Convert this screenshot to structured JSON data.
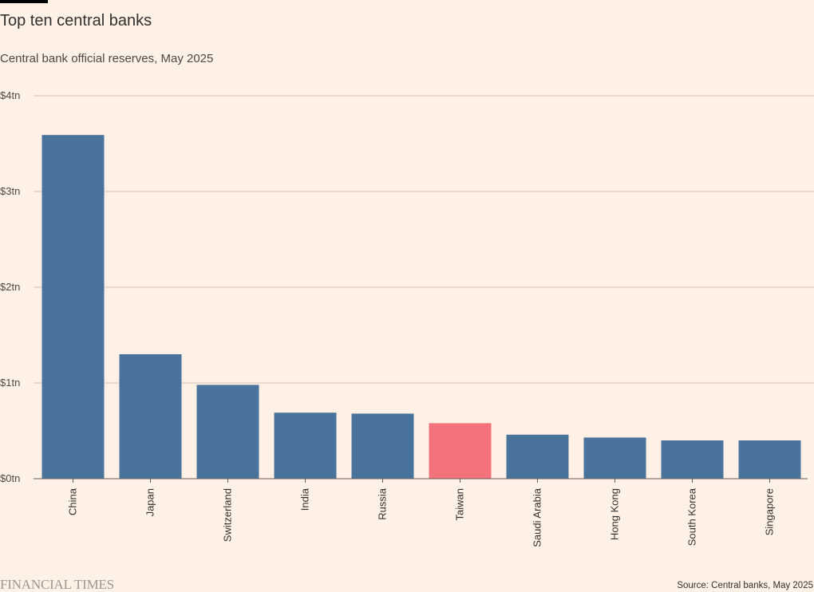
{
  "colors": {
    "background": "#FFF1E5",
    "bar": "#4A739C",
    "highlight": "#F4727B",
    "gridline": "#CCC1B7",
    "axis": "#66605C"
  },
  "chart_data": {
    "type": "bar",
    "title": "Top ten central banks",
    "subtitle": "Central bank official reserves, May 2025",
    "categories": [
      "China",
      "Japan",
      "Switzerland",
      "India",
      "Russia",
      "Taiwan",
      "Saudi Arabia",
      "Hong Kong",
      "South Korea",
      "Singapore"
    ],
    "values": [
      3.59,
      1.3,
      0.98,
      0.69,
      0.68,
      0.58,
      0.46,
      0.43,
      0.4,
      0.4
    ],
    "highlight": "Taiwan",
    "value_unit": "$ trillion",
    "xlabel": "",
    "ylabel": "",
    "ylim": [
      0,
      4
    ],
    "y_ticks": [
      {
        "value": 0,
        "label": "$0tn"
      },
      {
        "value": 1,
        "label": "$1tn"
      },
      {
        "value": 2,
        "label": "$2tn"
      },
      {
        "value": 3,
        "label": "$3tn"
      },
      {
        "value": 4,
        "label": "$4tn"
      }
    ],
    "grid": true,
    "legend": "none",
    "source": "Source: Central banks, May 2025"
  },
  "brand": "FINANCIAL TIMES"
}
